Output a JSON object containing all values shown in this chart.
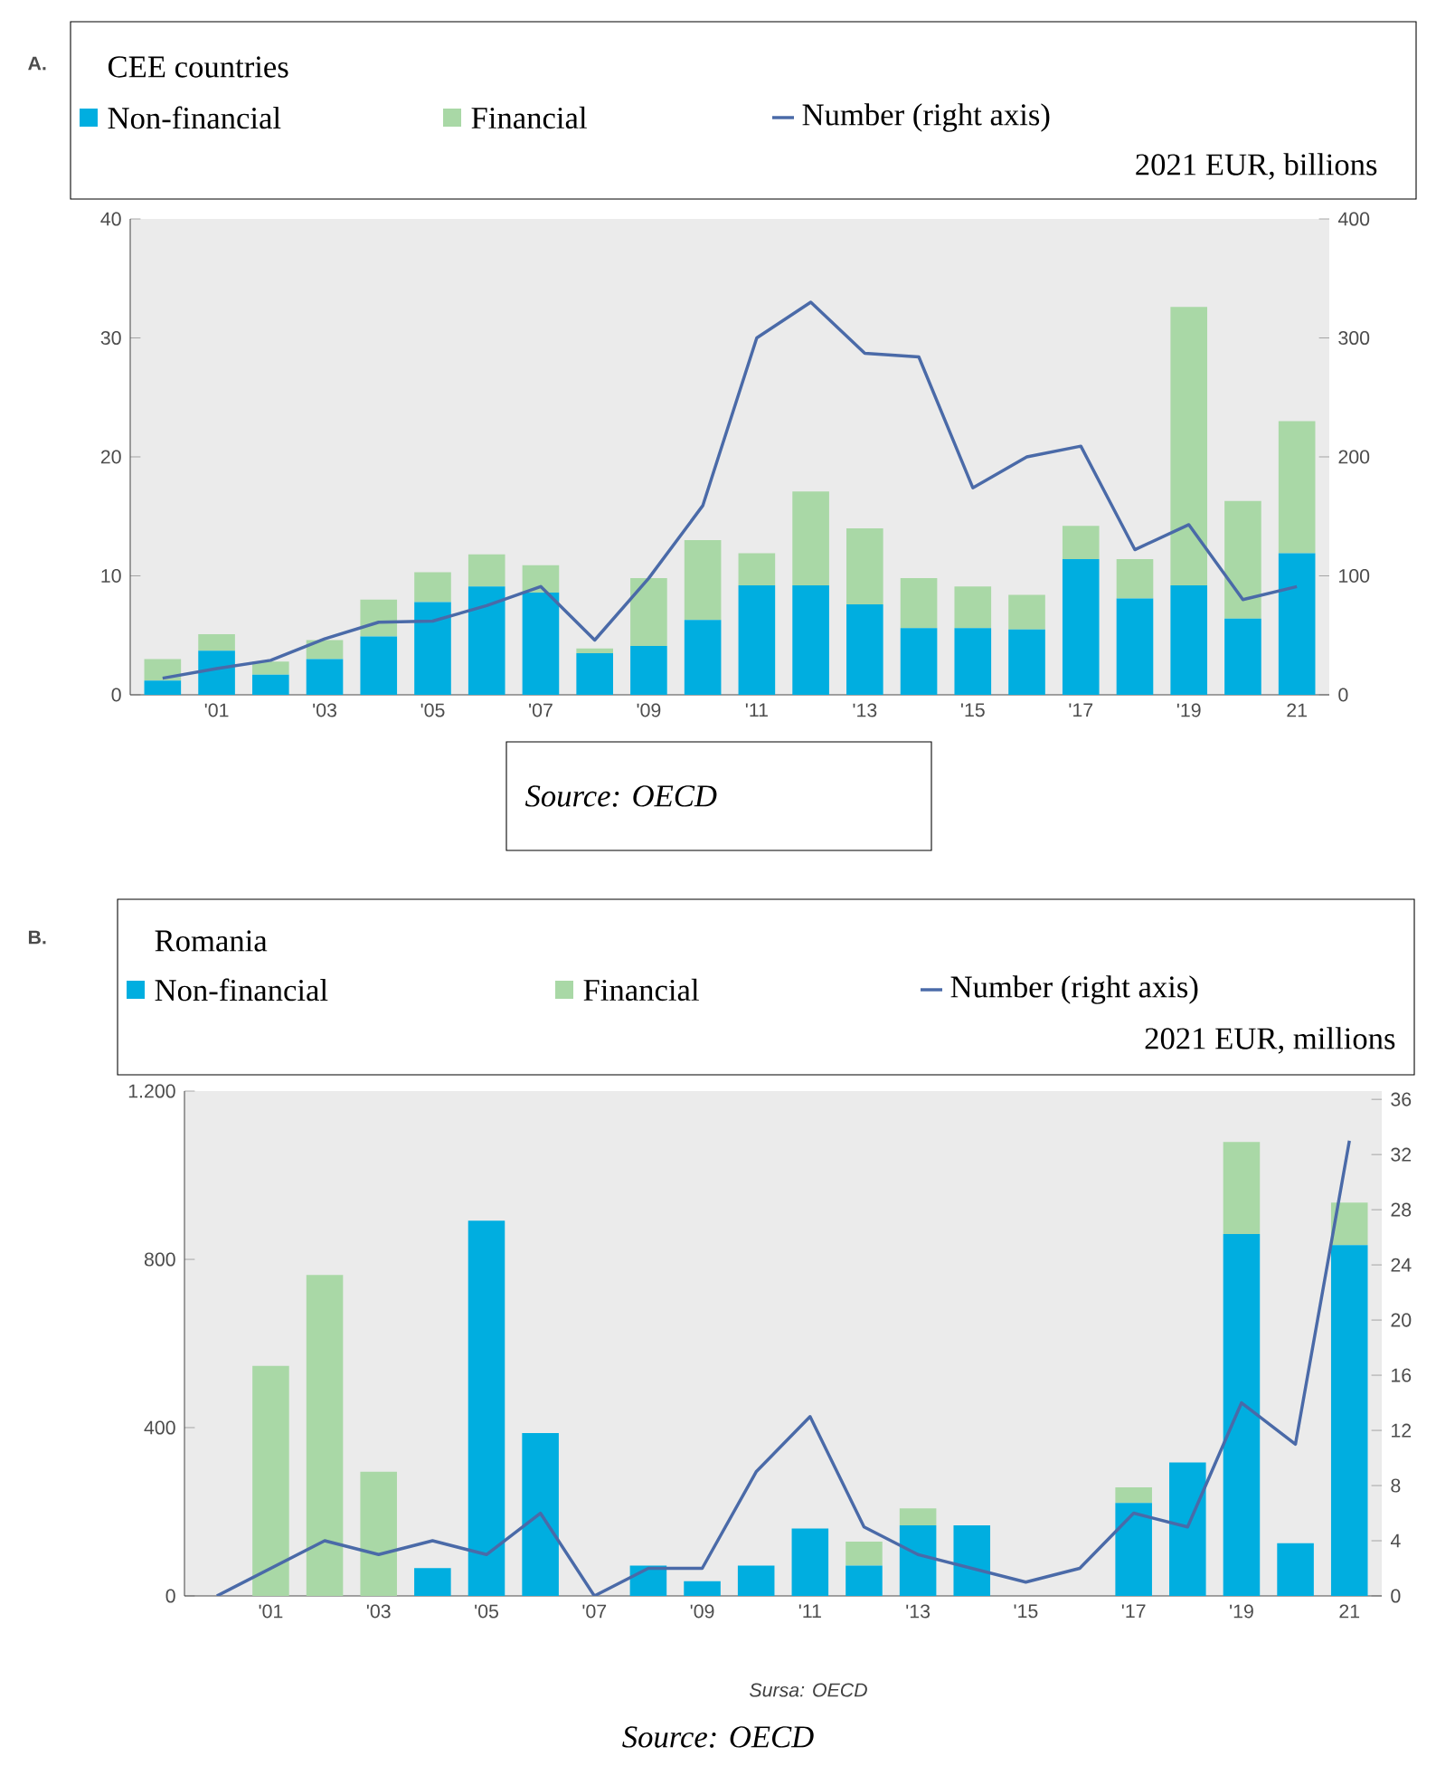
{
  "chart_data": [
    {
      "type": "bar",
      "stacked": true,
      "title": "CEE countries",
      "subtitle": "2021 EUR, billions",
      "legend": "top",
      "categories": [
        null,
        "'01",
        null,
        "'03",
        null,
        "'05",
        null,
        "'07",
        null,
        "'09",
        null,
        "'11",
        null,
        "'13",
        null,
        "'15",
        null,
        "'17",
        null,
        "'19",
        null,
        "21"
      ],
      "series": [
        {
          "name": "Non-financial",
          "color": "#00aee0",
          "values": [
            1.2,
            3.7,
            1.7,
            3.0,
            4.9,
            7.8,
            9.1,
            8.6,
            3.5,
            4.1,
            6.3,
            9.2,
            9.2,
            7.6,
            5.6,
            5.6,
            5.5,
            11.4,
            8.1,
            9.2,
            6.4,
            11.9
          ]
        },
        {
          "name": "Financial",
          "color": "#a9d8a6",
          "values": [
            1.8,
            1.4,
            1.1,
            1.6,
            3.1,
            2.5,
            2.7,
            2.3,
            0.4,
            5.7,
            6.7,
            2.7,
            7.9,
            6.4,
            4.2,
            3.5,
            2.9,
            2.8,
            3.3,
            23.4,
            9.9,
            11.1
          ]
        },
        {
          "name": "Number (right axis)",
          "type": "line",
          "axis": "y2",
          "color": "#4a6aa8",
          "values": [
            14,
            22,
            29,
            47,
            61,
            62,
            75,
            91,
            46,
            98,
            159,
            300,
            330,
            287,
            284,
            174,
            200,
            209,
            122,
            143,
            80,
            91
          ]
        }
      ],
      "ylim": [
        0,
        40
      ],
      "yticks": [
        0,
        10,
        20,
        30,
        40
      ],
      "y2lim": [
        0,
        400
      ],
      "y2ticks": [
        0,
        100,
        200,
        300,
        400
      ],
      "annotations": [
        "A.",
        "Source: OECD"
      ]
    },
    {
      "type": "bar",
      "stacked": true,
      "title": "Romania",
      "subtitle": "2021 EUR, millions",
      "legend": "top",
      "categories": [
        null,
        "'01",
        null,
        "'03",
        null,
        "'05",
        null,
        "'07",
        null,
        "'09",
        null,
        "'11",
        null,
        "'13",
        null,
        "'15",
        null,
        "'17",
        null,
        "'19",
        null,
        "21"
      ],
      "series": [
        {
          "name": "Non-financial",
          "color": "#00aee0",
          "values": [
            0,
            0,
            0,
            0,
            66,
            892,
            387,
            0,
            72,
            35,
            72,
            160,
            72,
            168,
            168,
            0,
            0,
            221,
            317,
            860,
            125,
            834
          ]
        },
        {
          "name": "Financial",
          "color": "#a9d8a6",
          "values": [
            0,
            547,
            763,
            295,
            0,
            0,
            0,
            0,
            0,
            0,
            0,
            0,
            57,
            40,
            0,
            0,
            0,
            37,
            0,
            219,
            0,
            101
          ]
        },
        {
          "name": "Number (right axis)",
          "type": "line",
          "axis": "y2",
          "color": "#4a6aa8",
          "values": [
            0,
            2,
            4,
            3,
            4,
            3,
            6,
            0,
            2,
            2,
            9,
            13,
            5,
            3,
            2,
            1,
            2,
            6,
            5,
            14,
            11,
            33
          ]
        }
      ],
      "ylim": [
        0,
        1200
      ],
      "yticks": [
        0,
        400,
        800,
        {
          "value": 1200,
          "label": "1.200"
        }
      ],
      "y2lim": [
        0,
        36.6
      ],
      "y2ticks": [
        0,
        4,
        8,
        12,
        16,
        20,
        24,
        28,
        32,
        36
      ],
      "annotations": [
        "B.",
        "Sursa: OECD",
        "Source: OECD"
      ]
    }
  ]
}
